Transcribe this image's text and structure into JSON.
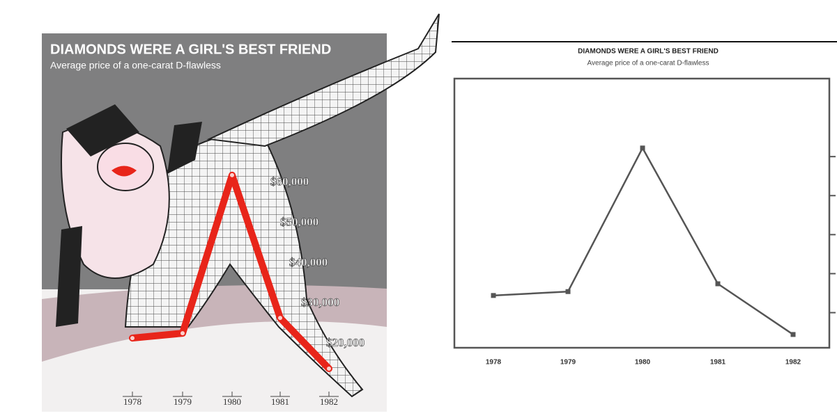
{
  "chart_data": [
    {
      "type": "line",
      "title": "DIAMONDS WERE A GIRL'S BEST FRIEND",
      "subtitle": "Average price of a one-carat D-flawless",
      "categories": [
        "1978",
        "1979",
        "1980",
        "1981",
        "1982"
      ],
      "values": [
        21400,
        22600,
        61900,
        26400,
        13800
      ],
      "color": "#e8251a",
      "ylim": [
        10000,
        70000
      ],
      "yticks": [
        {
          "value": 60000,
          "label": "$60,000"
        },
        {
          "value": 50000,
          "label": "$50,000"
        },
        {
          "value": 40000,
          "label": "$40,000"
        },
        {
          "value": 30000,
          "label": "$30,000"
        },
        {
          "value": 20000,
          "label": "$20,000"
        }
      ]
    },
    {
      "type": "line",
      "title": "DIAMONDS WERE A GIRL'S BEST FRIEND",
      "subtitle": "Average price of a one-carat D-flawless",
      "categories": [
        "1978",
        "1979",
        "1980",
        "1981",
        "1982"
      ],
      "values": [
        24400,
        25400,
        62200,
        27400,
        14400
      ],
      "color": "#555555",
      "ylim": [
        11000,
        80000
      ],
      "yticks": [
        60000,
        50000,
        40000,
        30000,
        20000
      ]
    }
  ]
}
